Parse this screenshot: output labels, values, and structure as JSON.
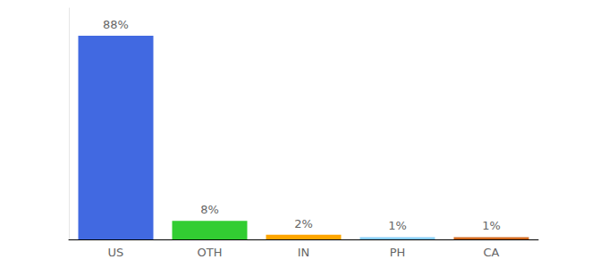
{
  "chart_data": {
    "type": "bar",
    "categories": [
      "US",
      "OTH",
      "IN",
      "PH",
      "CA"
    ],
    "values": [
      88,
      8,
      2,
      1,
      1
    ],
    "value_labels": [
      "88%",
      "8%",
      "2%",
      "1%",
      "1%"
    ],
    "colors": [
      "#4169e1",
      "#32cd32",
      "#ffa500",
      "#87cefa",
      "#d2691e"
    ],
    "ylim": [
      0,
      100
    ],
    "grid": false,
    "data_labels": true,
    "tick_labels": "x"
  }
}
